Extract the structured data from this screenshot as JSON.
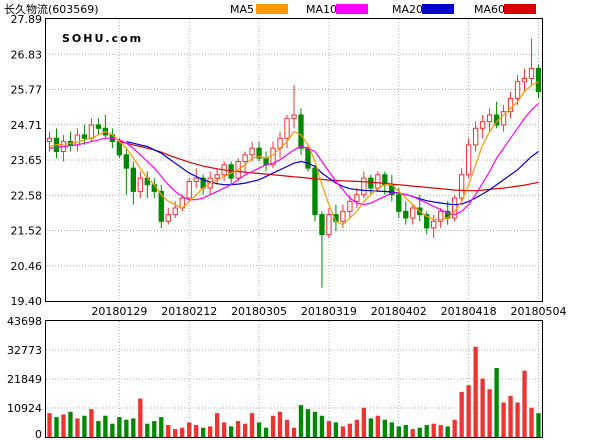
{
  "header": {
    "title": "长久物流(603569)"
  },
  "watermark": "SOHU.com",
  "colors": {
    "up": "#ee3333",
    "down": "#008800",
    "volume_up": "#ee3333",
    "volume_down": "#008800",
    "ma5": "#ff9900",
    "ma10": "#ff00ff",
    "ma20": "#0000cc",
    "ma60": "#dd0000"
  },
  "chart_data": [
    {
      "type": "candlestick",
      "title": "长久物流(603569)",
      "ylim": [
        19.4,
        27.89
      ],
      "y_ticks": [
        "27.89",
        "26.83",
        "25.77",
        "24.71",
        "23.65",
        "22.58",
        "21.52",
        "20.46",
        "19.40"
      ],
      "x_tick_labels": [
        "20180129",
        "20180212",
        "20180305",
        "20180319",
        "20180402",
        "20180418",
        "20180504"
      ],
      "x_tick_index": [
        10,
        20,
        30,
        40,
        50,
        60,
        70
      ],
      "grid": true,
      "legend": [
        {
          "name": "MA5",
          "color": "#ff9900"
        },
        {
          "name": "MA10",
          "color": "#ff00ff"
        },
        {
          "name": "MA20",
          "color": "#0000cc"
        },
        {
          "name": "MA60",
          "color": "#dd0000"
        }
      ],
      "ohlc": [
        [
          24.2,
          24.5,
          23.9,
          24.3
        ],
        [
          24.3,
          24.6,
          23.7,
          23.9
        ],
        [
          23.9,
          24.4,
          23.6,
          24.2
        ],
        [
          24.2,
          24.5,
          23.9,
          24.1
        ],
        [
          24.1,
          24.6,
          23.9,
          24.4
        ],
        [
          24.4,
          24.7,
          24.1,
          24.3
        ],
        [
          24.3,
          24.9,
          24.2,
          24.7
        ],
        [
          24.7,
          24.9,
          24.4,
          24.6
        ],
        [
          24.6,
          25.0,
          24.3,
          24.4
        ],
        [
          24.4,
          24.6,
          24.0,
          24.2
        ],
        [
          24.2,
          24.3,
          23.7,
          23.8
        ],
        [
          23.8,
          24.0,
          22.6,
          23.4
        ],
        [
          23.4,
          23.6,
          22.3,
          22.7
        ],
        [
          22.7,
          23.3,
          22.5,
          23.1
        ],
        [
          23.1,
          23.3,
          22.5,
          22.9
        ],
        [
          22.9,
          23.1,
          22.5,
          22.7
        ],
        [
          22.7,
          22.9,
          21.6,
          21.8
        ],
        [
          21.8,
          22.2,
          21.7,
          22.0
        ],
        [
          22.0,
          22.4,
          21.9,
          22.2
        ],
        [
          22.2,
          22.6,
          22.1,
          22.5
        ],
        [
          22.5,
          23.1,
          22.4,
          23.0
        ],
        [
          23.0,
          23.4,
          22.8,
          23.1
        ],
        [
          23.1,
          23.2,
          22.6,
          22.8
        ],
        [
          22.8,
          23.3,
          22.6,
          23.1
        ],
        [
          23.1,
          23.4,
          22.9,
          23.2
        ],
        [
          23.2,
          23.6,
          23.0,
          23.5
        ],
        [
          23.5,
          23.6,
          22.9,
          23.1
        ],
        [
          23.1,
          23.7,
          23.0,
          23.6
        ],
        [
          23.6,
          23.9,
          23.3,
          23.8
        ],
        [
          23.8,
          24.2,
          23.6,
          24.0
        ],
        [
          24.0,
          24.2,
          23.6,
          23.7
        ],
        [
          23.7,
          23.9,
          23.3,
          23.5
        ],
        [
          23.5,
          24.2,
          23.4,
          24.0
        ],
        [
          24.0,
          24.5,
          23.7,
          24.3
        ],
        [
          24.3,
          25.0,
          24.0,
          24.9
        ],
        [
          24.9,
          25.9,
          24.6,
          25.0
        ],
        [
          25.0,
          25.2,
          23.8,
          24.0
        ],
        [
          24.0,
          24.1,
          23.3,
          23.4
        ],
        [
          23.4,
          23.5,
          21.8,
          22.0
        ],
        [
          22.0,
          22.1,
          19.8,
          21.4
        ],
        [
          21.4,
          22.2,
          21.3,
          22.0
        ],
        [
          22.0,
          22.3,
          21.5,
          21.8
        ],
        [
          21.8,
          22.3,
          21.6,
          22.1
        ],
        [
          22.1,
          22.6,
          21.9,
          22.4
        ],
        [
          22.4,
          22.8,
          22.2,
          22.6
        ],
        [
          22.6,
          23.3,
          22.5,
          23.1
        ],
        [
          23.1,
          23.2,
          22.6,
          22.8
        ],
        [
          22.8,
          23.3,
          22.7,
          23.2
        ],
        [
          23.2,
          23.3,
          22.6,
          22.9
        ],
        [
          22.9,
          23.2,
          22.4,
          22.6
        ],
        [
          22.6,
          22.8,
          21.9,
          22.1
        ],
        [
          22.1,
          22.4,
          21.7,
          21.9
        ],
        [
          21.9,
          22.3,
          21.7,
          22.2
        ],
        [
          22.2,
          22.6,
          21.8,
          22.0
        ],
        [
          22.0,
          22.1,
          21.4,
          21.6
        ],
        [
          21.6,
          22.0,
          21.3,
          21.8
        ],
        [
          21.8,
          22.2,
          21.6,
          22.1
        ],
        [
          22.1,
          22.4,
          21.7,
          21.9
        ],
        [
          21.9,
          22.6,
          21.8,
          22.5
        ],
        [
          22.5,
          23.4,
          22.4,
          23.2
        ],
        [
          23.2,
          24.3,
          23.1,
          24.1
        ],
        [
          24.1,
          24.8,
          23.9,
          24.6
        ],
        [
          24.6,
          25.0,
          24.3,
          24.8
        ],
        [
          24.8,
          25.2,
          24.5,
          25.0
        ],
        [
          25.0,
          25.4,
          24.6,
          24.7
        ],
        [
          24.7,
          25.3,
          24.5,
          25.1
        ],
        [
          25.1,
          25.7,
          24.9,
          25.5
        ],
        [
          25.5,
          26.2,
          25.3,
          26.0
        ],
        [
          26.0,
          26.4,
          25.7,
          26.1
        ],
        [
          26.1,
          27.3,
          25.9,
          26.4
        ],
        [
          26.4,
          26.5,
          25.5,
          25.7
        ]
      ],
      "ma5": [
        24.05,
        24.1,
        24.12,
        24.15,
        24.18,
        24.25,
        24.3,
        24.4,
        24.5,
        24.4,
        24.2,
        24.0,
        23.7,
        23.4,
        23.1,
        22.9,
        22.6,
        22.4,
        22.3,
        22.2,
        22.4,
        22.6,
        22.8,
        22.95,
        23.05,
        23.15,
        23.25,
        23.35,
        23.5,
        23.7,
        23.75,
        23.7,
        23.8,
        24.0,
        24.2,
        24.5,
        24.4,
        24.1,
        23.6,
        22.9,
        22.3,
        21.8,
        21.7,
        21.9,
        22.1,
        22.4,
        22.6,
        22.8,
        22.9,
        22.9,
        22.7,
        22.5,
        22.3,
        22.1,
        21.95,
        21.85,
        21.85,
        21.9,
        22.1,
        22.4,
        22.9,
        23.5,
        24.1,
        24.5,
        24.8,
        25.0,
        25.2,
        25.4,
        25.7,
        25.9,
        26.0
      ],
      "ma10": [
        24.0,
        24.02,
        24.05,
        24.08,
        24.1,
        24.15,
        24.2,
        24.25,
        24.3,
        24.3,
        24.25,
        24.15,
        24.0,
        23.8,
        23.6,
        23.4,
        23.15,
        22.9,
        22.7,
        22.55,
        22.45,
        22.45,
        22.5,
        22.6,
        22.7,
        22.8,
        22.9,
        23.05,
        23.2,
        23.3,
        23.4,
        23.5,
        23.55,
        23.65,
        23.8,
        23.95,
        24.05,
        24.0,
        23.9,
        23.6,
        23.3,
        23.0,
        22.75,
        22.5,
        22.35,
        22.3,
        22.35,
        22.45,
        22.55,
        22.65,
        22.65,
        22.6,
        22.55,
        22.45,
        22.35,
        22.25,
        22.15,
        22.05,
        22.0,
        22.1,
        22.3,
        22.6,
        22.95,
        23.3,
        23.7,
        24.0,
        24.3,
        24.6,
        24.9,
        25.15,
        25.35
      ],
      "ma20": [
        null,
        null,
        null,
        null,
        null,
        null,
        null,
        null,
        null,
        null,
        null,
        24.2,
        24.15,
        24.1,
        24.05,
        23.95,
        23.85,
        23.7,
        23.55,
        23.4,
        23.25,
        23.15,
        23.05,
        22.98,
        22.93,
        22.9,
        22.9,
        22.92,
        22.95,
        23.0,
        23.05,
        23.15,
        23.25,
        23.35,
        23.45,
        23.55,
        23.6,
        23.55,
        23.45,
        23.25,
        23.1,
        22.95,
        22.85,
        22.78,
        22.75,
        22.73,
        22.72,
        22.71,
        22.7,
        22.68,
        22.65,
        22.6,
        22.55,
        22.48,
        22.42,
        22.38,
        22.35,
        22.32,
        22.3,
        22.32,
        22.4,
        22.5,
        22.62,
        22.75,
        22.9,
        23.05,
        23.2,
        23.35,
        23.55,
        23.75,
        23.9
      ],
      "ma60": [
        null,
        null,
        null,
        null,
        null,
        null,
        null,
        null,
        null,
        null,
        24.2,
        24.15,
        24.1,
        24.05,
        24.0,
        23.95,
        23.88,
        23.8,
        23.72,
        23.65,
        23.58,
        23.52,
        23.46,
        23.42,
        23.38,
        23.35,
        23.32,
        23.3,
        23.28,
        23.26,
        23.24,
        23.22,
        23.2,
        23.18,
        23.16,
        23.14,
        23.12,
        23.1,
        23.08,
        23.06,
        23.04,
        23.03,
        23.02,
        23.01,
        23.0,
        22.99,
        22.98,
        22.96,
        22.94,
        22.92,
        22.9,
        22.88,
        22.86,
        22.84,
        22.82,
        22.8,
        22.78,
        22.76,
        22.74,
        22.73,
        22.72,
        22.72,
        22.74,
        22.76,
        22.78,
        22.8,
        22.83,
        22.86,
        22.89,
        22.93,
        22.97
      ]
    },
    {
      "type": "bar",
      "title": "",
      "ylim": [
        0,
        43698
      ],
      "y_ticks": [
        "43698",
        "32773",
        "21849",
        "10924",
        "0"
      ],
      "grid": true,
      "volume": [
        9000,
        7500,
        8500,
        9500,
        7000,
        8000,
        10500,
        6000,
        8000,
        5000,
        7500,
        6500,
        7000,
        14500,
        5000,
        6000,
        7500,
        4500,
        3000,
        3500,
        5500,
        4500,
        3500,
        4000,
        9000,
        5500,
        4000,
        6000,
        5000,
        9000,
        5500,
        3500,
        8000,
        9500,
        6500,
        3500,
        12000,
        10500,
        9500,
        8000,
        6000,
        5500,
        4000,
        5000,
        6500,
        11000,
        7000,
        8000,
        6500,
        5500,
        4000,
        4500,
        3000,
        3500,
        4500,
        5000,
        4500,
        4000,
        6500,
        17000,
        19500,
        34000,
        22000,
        18000,
        26000,
        13000,
        15500,
        13000,
        25000,
        11000,
        9000
      ]
    }
  ]
}
